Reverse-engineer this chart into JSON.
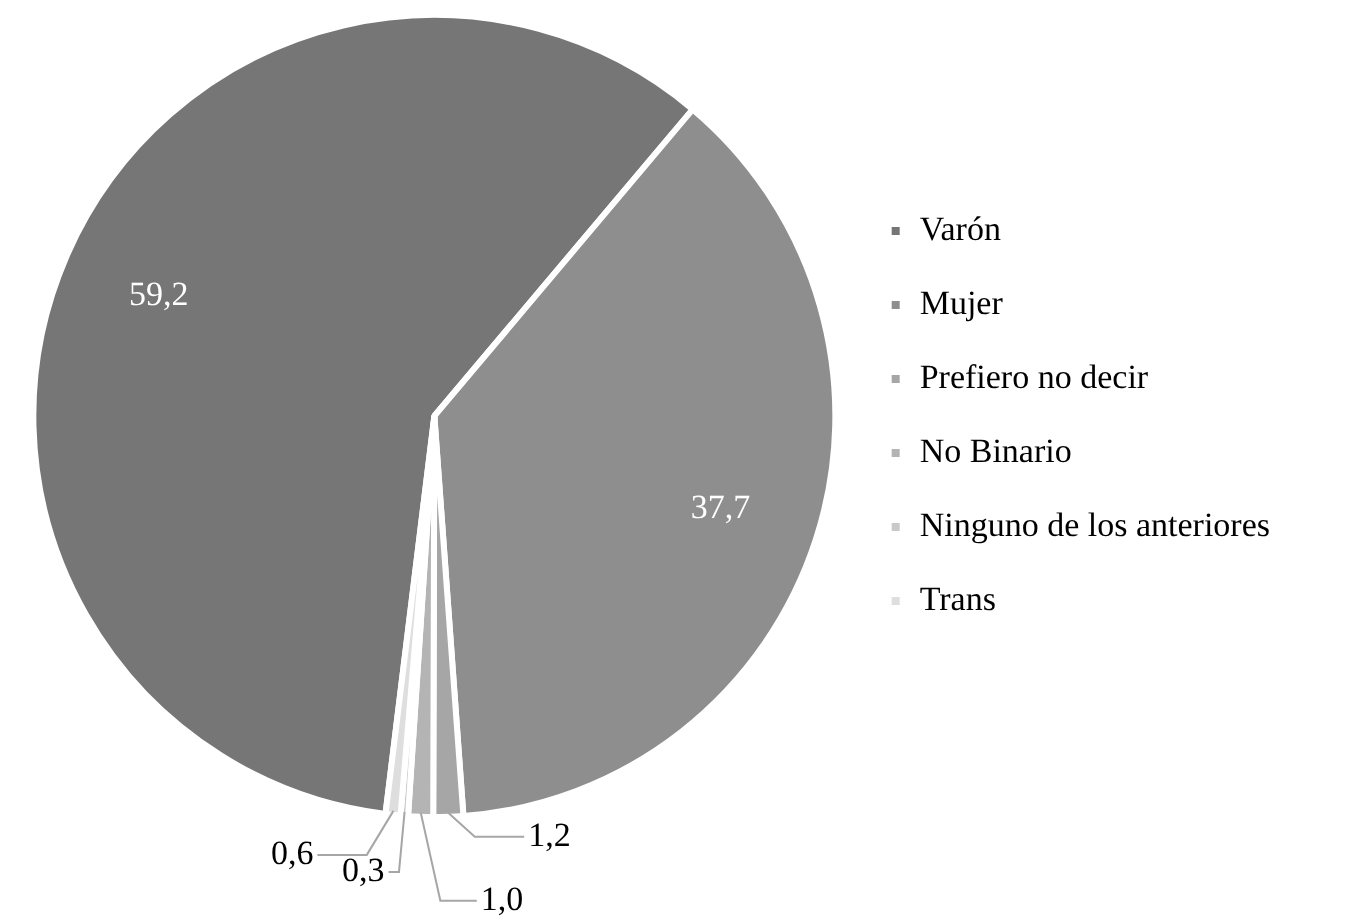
{
  "chart_data": {
    "type": "pie",
    "categories": [
      "Varón",
      "Mujer",
      "Prefiero no decir",
      "No Binario",
      "Ninguno de los anteriores",
      "Trans"
    ],
    "values": [
      59.2,
      37.7,
      1.2,
      1.0,
      0.3,
      0.6
    ],
    "value_labels": [
      "59,2",
      "37,7",
      "1,2",
      "1,0",
      "0,3",
      "0,6"
    ],
    "colors": [
      "#767676",
      "#8e8e8e",
      "#a6a6a6",
      "#b4b4b4",
      "#c9c9c9",
      "#dedede"
    ],
    "legend": "right"
  }
}
